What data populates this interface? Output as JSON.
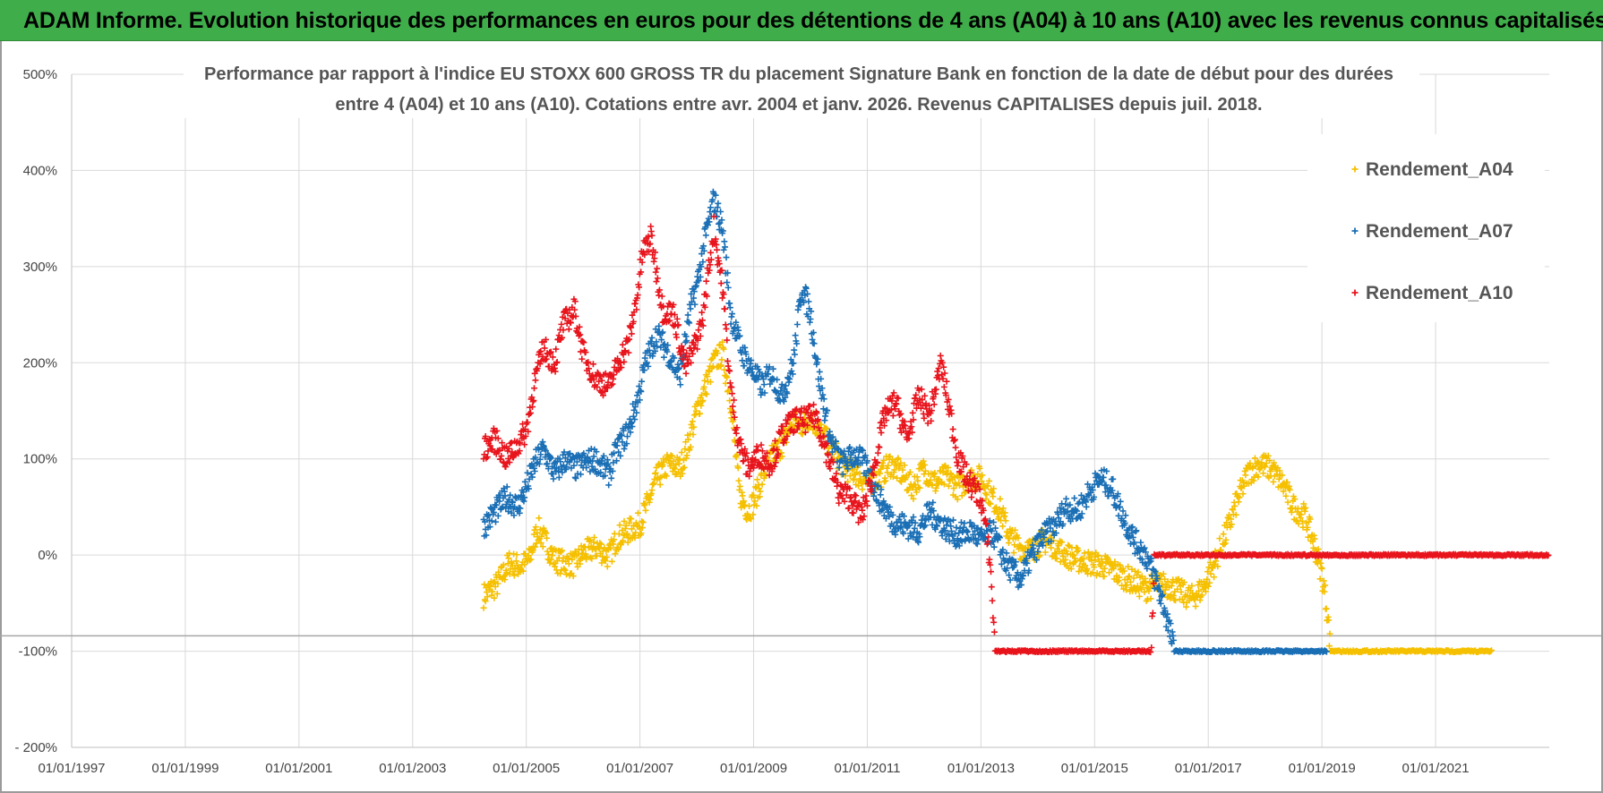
{
  "banner": {
    "title": "ADAM Informe. Evolution historique des performances en euros pour des détentions de 4 ans (A04) à 10 ans (A10) avec les revenus connus capitalisés",
    "color": "#3fae4a"
  },
  "chart_data": {
    "type": "scatter",
    "title_lines": [
      "Performance par rapport à l'indice EU STOXX 600 GROSS TR  du placement Signature Bank en fonction de la date de début pour des durées",
      "entre 4 (A04) et 10 ans (A10). Cotations entre avr. 2004 et janv. 2026. Revenus CAPITALISES depuis juil. 2018."
    ],
    "xlabel": "",
    "ylabel": "",
    "xlim": [
      1997.0,
      2023.0
    ],
    "ylim": [
      -200,
      500
    ],
    "grid": true,
    "legend_position": "top-right",
    "x_ticks": [
      1997,
      1999,
      2001,
      2003,
      2005,
      2007,
      2009,
      2011,
      2013,
      2015,
      2017,
      2019,
      2021
    ],
    "x_tick_labels": [
      "01/01/1997",
      "01/01/1999",
      "01/01/2001",
      "01/01/2003",
      "01/01/2005",
      "01/01/2007",
      "01/01/2009",
      "01/01/2011",
      "01/01/2013",
      "01/01/2015",
      "01/01/2017",
      "01/01/2019",
      "01/01/2021"
    ],
    "y_ticks": [
      -200,
      -100,
      0,
      100,
      200,
      300,
      400,
      500
    ],
    "y_tick_labels": [
      "- 200%",
      "-100%",
      "0%",
      "100%",
      "200%",
      "300%",
      "400%",
      "500%"
    ],
    "reference_line": -84,
    "series": [
      {
        "name": "Rendement_A04",
        "color": "#f5c000",
        "points": [
          [
            2004.25,
            -42
          ],
          [
            2004.5,
            -30
          ],
          [
            2004.7,
            -8
          ],
          [
            2004.9,
            -12
          ],
          [
            2005.05,
            -5
          ],
          [
            2005.2,
            28
          ],
          [
            2005.35,
            12
          ],
          [
            2005.5,
            -5
          ],
          [
            2005.65,
            -8
          ],
          [
            2005.85,
            -10
          ],
          [
            2006.0,
            2
          ],
          [
            2006.25,
            8
          ],
          [
            2006.45,
            -2
          ],
          [
            2006.6,
            18
          ],
          [
            2006.8,
            25
          ],
          [
            2007.0,
            32
          ],
          [
            2007.1,
            48
          ],
          [
            2007.3,
            80
          ],
          [
            2007.5,
            95
          ],
          [
            2007.7,
            90
          ],
          [
            2007.85,
            115
          ],
          [
            2008.0,
            150
          ],
          [
            2008.15,
            175
          ],
          [
            2008.3,
            200
          ],
          [
            2008.45,
            210
          ],
          [
            2008.6,
            160
          ],
          [
            2008.75,
            65
          ],
          [
            2008.9,
            45
          ],
          [
            2009.0,
            55
          ],
          [
            2009.15,
            80
          ],
          [
            2009.3,
            100
          ],
          [
            2009.5,
            115
          ],
          [
            2009.7,
            140
          ],
          [
            2009.85,
            135
          ],
          [
            2010.0,
            145
          ],
          [
            2010.2,
            125
          ],
          [
            2010.4,
            110
          ],
          [
            2010.6,
            90
          ],
          [
            2010.8,
            85
          ],
          [
            2011.0,
            75
          ],
          [
            2011.2,
            80
          ],
          [
            2011.4,
            95
          ],
          [
            2011.6,
            85
          ],
          [
            2011.8,
            70
          ],
          [
            2012.0,
            90
          ],
          [
            2012.2,
            75
          ],
          [
            2012.4,
            82
          ],
          [
            2012.6,
            70
          ],
          [
            2012.8,
            80
          ],
          [
            2013.0,
            80
          ],
          [
            2013.2,
            60
          ],
          [
            2013.35,
            45
          ],
          [
            2013.5,
            20
          ],
          [
            2013.7,
            8
          ],
          [
            2013.9,
            5
          ],
          [
            2014.1,
            15
          ],
          [
            2014.3,
            10
          ],
          [
            2014.5,
            0
          ],
          [
            2014.7,
            -5
          ],
          [
            2014.9,
            -8
          ],
          [
            2015.1,
            -10
          ],
          [
            2015.3,
            -15
          ],
          [
            2015.5,
            -22
          ],
          [
            2015.7,
            -28
          ],
          [
            2015.9,
            -35
          ],
          [
            2016.1,
            -30
          ],
          [
            2016.3,
            -32
          ],
          [
            2016.5,
            -38
          ],
          [
            2016.7,
            -45
          ],
          [
            2016.9,
            -35
          ],
          [
            2017.1,
            -10
          ],
          [
            2017.3,
            20
          ],
          [
            2017.5,
            55
          ],
          [
            2017.7,
            85
          ],
          [
            2017.9,
            95
          ],
          [
            2018.1,
            90
          ],
          [
            2018.3,
            75
          ],
          [
            2018.5,
            50
          ],
          [
            2018.7,
            40
          ],
          [
            2018.85,
            15
          ],
          [
            2019.0,
            -20
          ],
          [
            2019.1,
            -60
          ],
          [
            2019.15,
            -100
          ],
          [
            2019.4,
            -100
          ],
          [
            2019.8,
            -100
          ],
          [
            2020.2,
            -100
          ],
          [
            2020.6,
            -100
          ],
          [
            2021.0,
            -100
          ],
          [
            2021.4,
            -100
          ],
          [
            2021.8,
            -100
          ],
          [
            2022.0,
            -100
          ]
        ]
      },
      {
        "name": "Rendement_A07",
        "color": "#1a6fb5",
        "points": [
          [
            2004.25,
            30
          ],
          [
            2004.45,
            45
          ],
          [
            2004.65,
            60
          ],
          [
            2004.85,
            50
          ],
          [
            2005.0,
            70
          ],
          [
            2005.15,
            95
          ],
          [
            2005.3,
            110
          ],
          [
            2005.5,
            85
          ],
          [
            2005.7,
            100
          ],
          [
            2005.85,
            90
          ],
          [
            2006.0,
            95
          ],
          [
            2006.2,
            100
          ],
          [
            2006.45,
            85
          ],
          [
            2006.6,
            110
          ],
          [
            2006.8,
            130
          ],
          [
            2006.95,
            160
          ],
          [
            2007.1,
            200
          ],
          [
            2007.3,
            230
          ],
          [
            2007.5,
            210
          ],
          [
            2007.7,
            185
          ],
          [
            2007.9,
            260
          ],
          [
            2008.0,
            280
          ],
          [
            2008.15,
            330
          ],
          [
            2008.3,
            370
          ],
          [
            2008.45,
            340
          ],
          [
            2008.6,
            250
          ],
          [
            2008.8,
            210
          ],
          [
            2009.0,
            190
          ],
          [
            2009.15,
            175
          ],
          [
            2009.3,
            190
          ],
          [
            2009.5,
            165
          ],
          [
            2009.7,
            200
          ],
          [
            2009.85,
            280
          ],
          [
            2010.0,
            250
          ],
          [
            2010.15,
            185
          ],
          [
            2010.35,
            120
          ],
          [
            2010.55,
            95
          ],
          [
            2010.8,
            105
          ],
          [
            2011.0,
            90
          ],
          [
            2011.2,
            60
          ],
          [
            2011.45,
            35
          ],
          [
            2011.7,
            30
          ],
          [
            2011.9,
            25
          ],
          [
            2012.1,
            45
          ],
          [
            2012.35,
            30
          ],
          [
            2012.6,
            20
          ],
          [
            2012.85,
            25
          ],
          [
            2013.0,
            15
          ],
          [
            2013.2,
            25
          ],
          [
            2013.45,
            -10
          ],
          [
            2013.7,
            -25
          ],
          [
            2013.9,
            0
          ],
          [
            2014.1,
            20
          ],
          [
            2014.3,
            30
          ],
          [
            2014.5,
            50
          ],
          [
            2014.7,
            45
          ],
          [
            2014.9,
            65
          ],
          [
            2015.1,
            80
          ],
          [
            2015.3,
            70
          ],
          [
            2015.5,
            40
          ],
          [
            2015.7,
            15
          ],
          [
            2015.9,
            0
          ],
          [
            2016.1,
            -30
          ],
          [
            2016.25,
            -60
          ],
          [
            2016.4,
            -100
          ],
          [
            2016.8,
            -100
          ],
          [
            2017.2,
            -100
          ],
          [
            2017.6,
            -100
          ],
          [
            2018.0,
            -100
          ],
          [
            2018.4,
            -100
          ],
          [
            2018.8,
            -100
          ],
          [
            2019.1,
            -100
          ]
        ]
      },
      {
        "name": "Rendement_A10",
        "color": "#e8141c",
        "points": [
          [
            2004.25,
            110
          ],
          [
            2004.45,
            120
          ],
          [
            2004.65,
            100
          ],
          [
            2004.85,
            115
          ],
          [
            2005.0,
            130
          ],
          [
            2005.15,
            180
          ],
          [
            2005.3,
            215
          ],
          [
            2005.5,
            200
          ],
          [
            2005.65,
            240
          ],
          [
            2005.85,
            255
          ],
          [
            2006.0,
            210
          ],
          [
            2006.2,
            185
          ],
          [
            2006.45,
            175
          ],
          [
            2006.65,
            205
          ],
          [
            2006.8,
            220
          ],
          [
            2006.95,
            270
          ],
          [
            2007.05,
            315
          ],
          [
            2007.2,
            330
          ],
          [
            2007.4,
            255
          ],
          [
            2007.6,
            250
          ],
          [
            2007.8,
            195
          ],
          [
            2007.95,
            215
          ],
          [
            2008.1,
            245
          ],
          [
            2008.3,
            340
          ],
          [
            2008.45,
            280
          ],
          [
            2008.6,
            170
          ],
          [
            2008.75,
            115
          ],
          [
            2008.9,
            90
          ],
          [
            2009.1,
            105
          ],
          [
            2009.3,
            95
          ],
          [
            2009.5,
            125
          ],
          [
            2009.7,
            140
          ],
          [
            2009.9,
            140
          ],
          [
            2010.1,
            145
          ],
          [
            2010.3,
            105
          ],
          [
            2010.5,
            65
          ],
          [
            2010.7,
            60
          ],
          [
            2010.9,
            40
          ],
          [
            2011.1,
            85
          ],
          [
            2011.3,
            145
          ],
          [
            2011.5,
            160
          ],
          [
            2011.7,
            120
          ],
          [
            2011.9,
            165
          ],
          [
            2012.1,
            145
          ],
          [
            2012.3,
            200
          ],
          [
            2012.45,
            150
          ],
          [
            2012.6,
            100
          ],
          [
            2012.8,
            75
          ],
          [
            2013.0,
            60
          ],
          [
            2013.1,
            20
          ],
          [
            2013.15,
            0
          ],
          [
            2013.2,
            -45
          ],
          [
            2013.25,
            -100
          ],
          [
            2013.6,
            -100
          ],
          [
            2014.0,
            -100
          ],
          [
            2014.4,
            -100
          ],
          [
            2014.8,
            -100
          ],
          [
            2015.2,
            -100
          ],
          [
            2015.6,
            -100
          ],
          [
            2016.0,
            -100
          ],
          [
            2016.05,
            0
          ],
          [
            2016.5,
            0
          ],
          [
            2017.0,
            0
          ],
          [
            2017.5,
            0
          ],
          [
            2018.0,
            0
          ],
          [
            2018.5,
            0
          ],
          [
            2019.0,
            0
          ],
          [
            2019.5,
            0
          ],
          [
            2020.0,
            0
          ],
          [
            2020.5,
            0
          ],
          [
            2021.0,
            0
          ],
          [
            2021.5,
            0
          ],
          [
            2022.0,
            0
          ],
          [
            2022.5,
            0
          ],
          [
            2023.0,
            0
          ]
        ]
      }
    ]
  }
}
